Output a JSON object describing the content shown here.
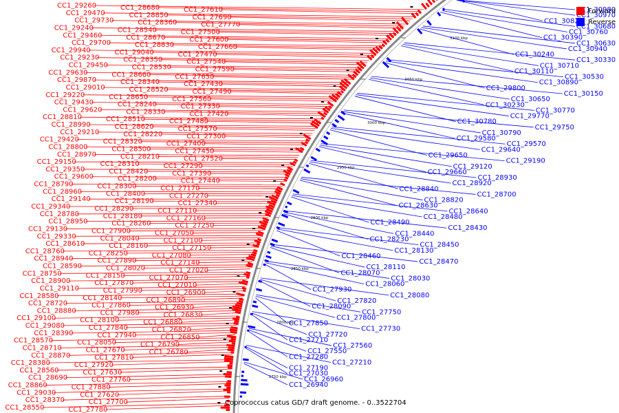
{
  "legend": {
    "forward_label": "Forward",
    "reverse_label": "Reverse",
    "forward_color": "#ff0000",
    "reverse_color": "#0000ff"
  },
  "caption": "Coprococcus catus GD/7 draft genome. - 0..3522704",
  "ticks": [
    "3100 kbp",
    "3050 kbp",
    "3000 kbp",
    "2950 kbp",
    "2900 kbp",
    "2850 kbp",
    "2800 kbp",
    "2750 kbp"
  ],
  "forward_labels": [
    "CC1_29260",
    "CC1_29470",
    "CC1_29730",
    "CC1_29240",
    "CC1_29460",
    "CC1_29700",
    "CC1_29940",
    "CC1_29230",
    "CC1_29450",
    "CC1_29630",
    "CC1_29870",
    "CC1_29010",
    "CC1_29220",
    "CC1_29430",
    "CC1_29620",
    "CC1_28810",
    "CC1_28990",
    "CC1_29210",
    "CC1_29420",
    "CC1_28800",
    "CC1_28970",
    "CC1_29150",
    "CC1_29350",
    "CC1_29600",
    "CC1_28790",
    "CC1_28960",
    "CC1_29140",
    "CC1_29340",
    "CC1_28780",
    "CC1_28950",
    "CC1_29130",
    "CC1_29330",
    "CC1_28610",
    "CC1_28760",
    "CC1_28940",
    "CC1_28590",
    "CC1_28750",
    "CC1_28900",
    "CC1_29110",
    "CC1_28580",
    "CC1_28720",
    "CC1_28880",
    "CC1_29100",
    "CC1_29080",
    "CC1_28390",
    "CC1_28570",
    "CC1_28710",
    "CC1_28870",
    "CC1_28380",
    "CC1_28560",
    "CC1_28690",
    "CC1_28860",
    "CC1_29030",
    "CC1_28370",
    "CC1_28550",
    "CC1_28680",
    "CC1_28850",
    "CC1_28360",
    "CC1_28540",
    "CC1_28670",
    "CC1_28830",
    "CC1_29040",
    "CC1_28350",
    "CC1_28530",
    "CC1_28660",
    "CC1_28340",
    "CC1_28520",
    "CC1_28650",
    "CC1_28240",
    "CC1_28330",
    "CC1_28510",
    "CC1_28620",
    "CC1_28220",
    "CC1_28320",
    "CC1_28500",
    "CC1_28210",
    "CC1_28310",
    "CC1_28420",
    "CC1_28200",
    "CC1_28300",
    "CC1_28400",
    "CC1_28190",
    "CC1_28290",
    "CC1_28180",
    "CC1_28260",
    "CC1_27900",
    "CC1_28040",
    "CC1_28160",
    "CC1_28250",
    "CC1_27890",
    "CC1_28020",
    "CC1_28150",
    "CC1_27870",
    "CC1_27990",
    "CC1_28140",
    "CC1_27860",
    "CC1_27980",
    "CC1_28100",
    "CC1_27840",
    "CC1_27940",
    "CC1_28050",
    "CC1_27670",
    "CC1_27810",
    "CC1_27920",
    "CC1_27630",
    "CC1_27760",
    "CC1_27880",
    "CC1_27620",
    "CC1_27700",
    "CC1_27780",
    "CC1_27610",
    "CC1_27690",
    "CC1_27770",
    "CC1_27500",
    "CC1_27600",
    "CC1_27660",
    "CC1_27470",
    "CC1_27540",
    "CC1_27590",
    "CC1_27650",
    "CC1_27430",
    "CC1_27490",
    "CC1_27560",
    "CC1_27330",
    "CC1_27420",
    "CC1_27480",
    "CC1_27570",
    "CC1_27300",
    "CC1_27400",
    "CC1_27450",
    "CC1_27520",
    "CC1_27290",
    "CC1_27390",
    "CC1_27440",
    "CC1_27170",
    "CC1_27270",
    "CC1_27340",
    "CC1_27110",
    "CC1_27160",
    "CC1_27250",
    "CC1_27050",
    "CC1_27100",
    "CC1_27150",
    "CC1_27080",
    "CC1_27140",
    "CC1_27020",
    "CC1_27070",
    "CC1_27010",
    "CC1_26900",
    "CC1_26890",
    "CC1_26930",
    "CC1_26830",
    "CC1_26880",
    "CC1_26820",
    "CC1_26850",
    "CC1_26790",
    "CC1_26780"
  ],
  "reverse_labels": [
    "CC1_30980",
    "CC1_30970",
    "CC1_30820",
    "CC1_30680",
    "CC1_30760",
    "CC1_30390",
    "CC1_30630",
    "CC1_30940",
    "CC1_30240",
    "CC1_30330",
    "CC1_30710",
    "CC1_30110",
    "CC1_30530",
    "CC1_30890",
    "CC1_29800",
    "CC1_30150",
    "CC1_30650",
    "CC1_30230",
    "CC1_30770",
    "CC1_29770",
    "CC1_30780",
    "CC1_29750",
    "CC1_30790",
    "CC1_29580",
    "CC1_29570",
    "CC1_29640",
    "CC1_29650",
    "CC1_29190",
    "CC1_29120",
    "CC1_29660",
    "CC1_28930",
    "CC1_28920",
    "CC1_28840",
    "CC1_28700",
    "CC1_28820",
    "CC1_28630",
    "CC1_28640",
    "CC1_28480",
    "CC1_28490",
    "CC1_28430",
    "CC1_28440",
    "CC1_28230",
    "CC1_28450",
    "CC1_28130",
    "CC1_28460",
    "CC1_28470",
    "CC1_28110",
    "CC1_28070",
    "CC1_28030",
    "CC1_28060",
    "CC1_27930",
    "CC1_28080",
    "CC1_27820",
    "CC1_28090",
    "CC1_27750",
    "CC1_27800",
    "CC1_27850",
    "CC1_27730",
    "CC1_27720",
    "CC1_27710",
    "CC1_27560",
    "CC1_27550",
    "CC1_27280",
    "CC1_27210",
    "CC1_27190",
    "CC1_27030",
    "CC1_26960",
    "CC1_26940"
  ]
}
